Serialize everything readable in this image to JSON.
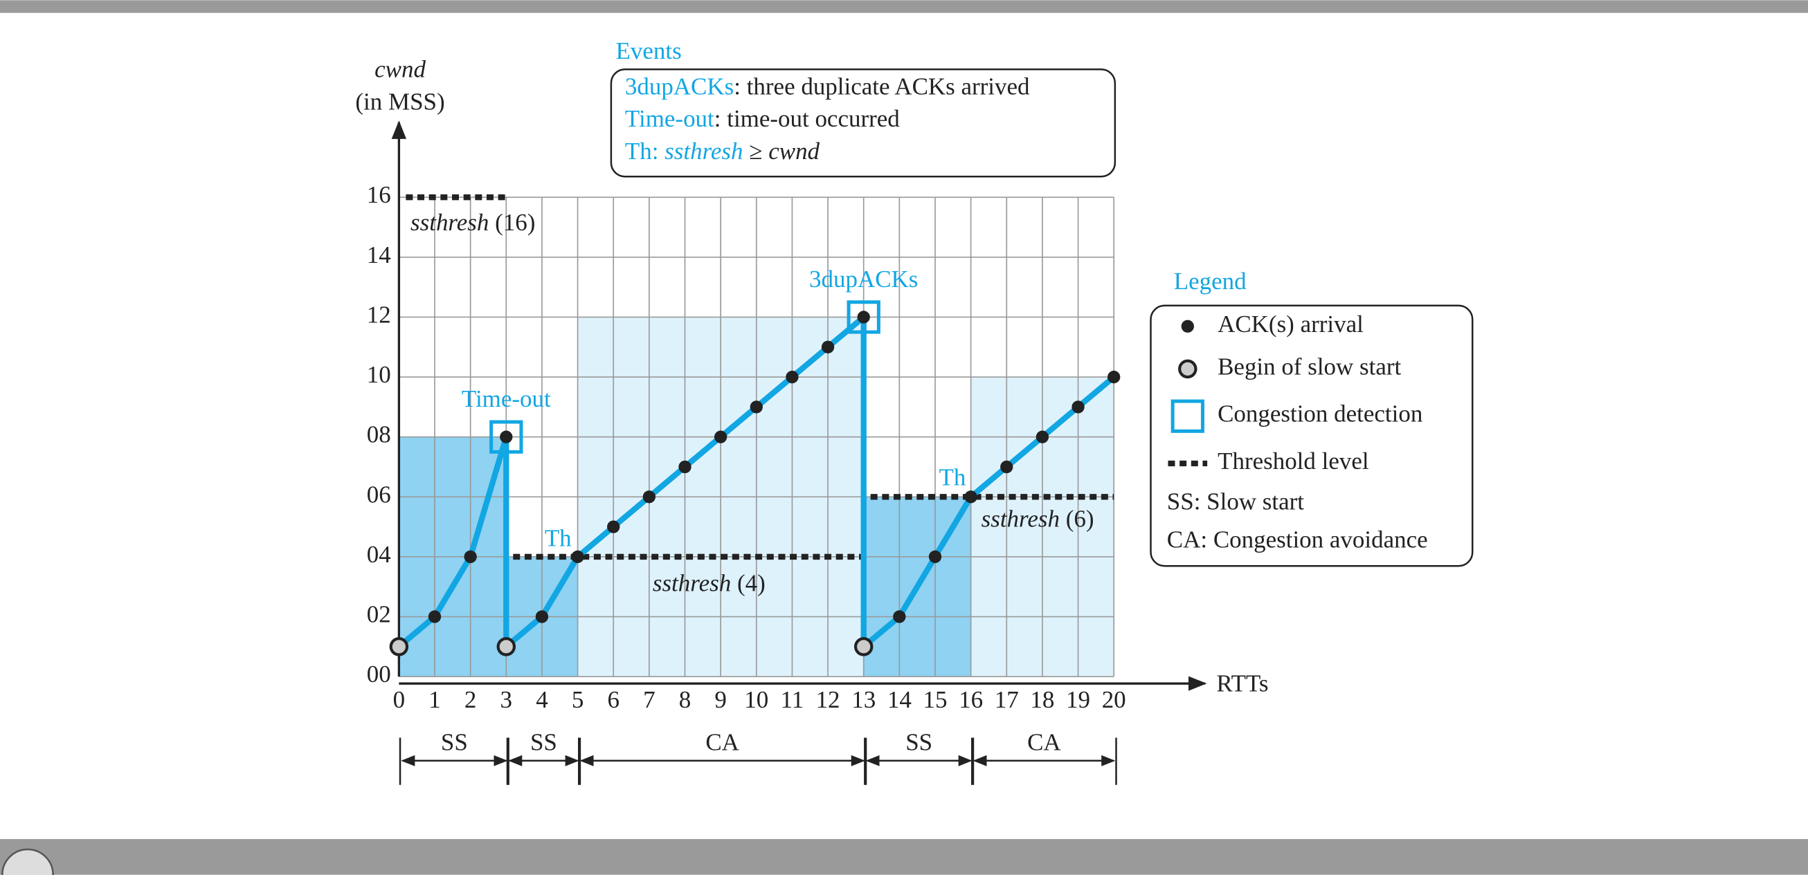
{
  "chart_data": {
    "type": "line",
    "y_label": "cwnd",
    "y_label_unit": "(in MSS)",
    "x_label": "RTTs",
    "xlim": [
      0,
      20
    ],
    "ylim": [
      0,
      16
    ],
    "xticks": [
      0,
      1,
      2,
      3,
      4,
      5,
      6,
      7,
      8,
      9,
      10,
      11,
      12,
      13,
      14,
      15,
      16,
      17,
      18,
      19,
      20
    ],
    "yticks": [
      {
        "value": 0,
        "label": "00"
      },
      {
        "value": 2,
        "label": "02"
      },
      {
        "value": 4,
        "label": "04"
      },
      {
        "value": 6,
        "label": "06"
      },
      {
        "value": 8,
        "label": "08"
      },
      10,
      12,
      14,
      16
    ],
    "grid": true,
    "series": [
      {
        "color": "#12a6e3",
        "x": [
          0,
          1,
          2,
          3,
          3,
          4,
          5,
          6,
          7,
          8,
          9,
          10,
          11,
          12,
          13,
          13,
          14,
          15,
          16,
          17,
          18,
          19,
          20
        ],
        "values": [
          1,
          2,
          4,
          8,
          1,
          2,
          4,
          5,
          6,
          7,
          8,
          9,
          10,
          11,
          12,
          1,
          2,
          4,
          6,
          7,
          8,
          9,
          10
        ]
      }
    ],
    "slow_start_begins": {
      "x": [
        0,
        3,
        13
      ],
      "values": [
        1,
        1,
        1
      ]
    },
    "congestion_detections": [
      {
        "x": 3,
        "value": 8,
        "label": "Time-out"
      },
      {
        "x": 13,
        "value": 12,
        "label": "3dupACKs"
      }
    ],
    "thresholds": [
      {
        "name": "ssthresh",
        "value": 16,
        "value_label": "(16)",
        "x": [
          0,
          3
        ]
      },
      {
        "name": "ssthresh",
        "value": 4,
        "value_label": "(4)",
        "x": [
          3,
          13
        ]
      },
      {
        "name": "ssthresh",
        "value": 6,
        "value_label": "(6)",
        "x": [
          13,
          20
        ]
      }
    ],
    "threshold_marks": [
      "Th",
      "Th"
    ],
    "regions": [
      {
        "x": [
          0,
          3
        ],
        "top": 8,
        "color": "#8fd2f2"
      },
      {
        "x": [
          3,
          5
        ],
        "top": 4,
        "color": "#8fd2f2"
      },
      {
        "x": [
          5,
          13
        ],
        "top": 12,
        "color": "#def2fc"
      },
      {
        "x": [
          13,
          16
        ],
        "top": 6,
        "color": "#8fd2f2"
      },
      {
        "x": [
          16,
          20
        ],
        "top": 10,
        "color": "#def2fc"
      }
    ],
    "phases": [
      {
        "label": "SS",
        "x": [
          0,
          3
        ]
      },
      {
        "label": "SS",
        "x": [
          3,
          5
        ]
      },
      {
        "label": "CA",
        "x": [
          5,
          13
        ]
      },
      {
        "label": "SS",
        "x": [
          13,
          16
        ]
      },
      {
        "label": "CA",
        "x": [
          16,
          20
        ]
      }
    ],
    "events": {
      "title": "Events",
      "items": [
        {
          "key": "3dupACKs",
          "text": ": three duplicate ACKs arrived"
        },
        {
          "key": "Time-out",
          "text": ": time-out occurred"
        }
      ],
      "rule": {
        "key": "Th:",
        "left": "ssthresh",
        "op": "≥",
        "right": "cwnd"
      }
    },
    "legend": {
      "title": "Legend",
      "items": [
        "ACK(s) arrival",
        "Begin of slow start",
        "Congestion detection",
        "Threshold level",
        "SS: Slow start",
        "CA: Congestion avoidance"
      ]
    }
  }
}
